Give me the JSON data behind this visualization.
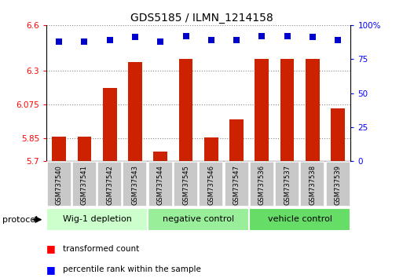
{
  "title": "GDS5185 / ILMN_1214158",
  "samples": [
    "GSM737540",
    "GSM737541",
    "GSM737542",
    "GSM737543",
    "GSM737544",
    "GSM737545",
    "GSM737546",
    "GSM737547",
    "GSM737536",
    "GSM737537",
    "GSM737538",
    "GSM737539"
  ],
  "transformed_count": [
    5.865,
    5.862,
    6.185,
    6.355,
    5.765,
    6.375,
    5.855,
    5.975,
    6.375,
    6.375,
    6.375,
    6.05
  ],
  "percentile_rank": [
    88,
    88,
    89,
    91,
    88,
    92,
    89,
    89,
    92,
    92,
    91,
    89
  ],
  "groups": [
    {
      "label": "Wig-1 depletion",
      "start": 0,
      "end": 4,
      "color": "#ccffcc"
    },
    {
      "label": "negative control",
      "start": 4,
      "end": 8,
      "color": "#99ee99"
    },
    {
      "label": "vehicle control",
      "start": 8,
      "end": 12,
      "color": "#66dd66"
    }
  ],
  "ylim_left": [
    5.7,
    6.6
  ],
  "ylim_right": [
    0,
    100
  ],
  "yticks_left": [
    5.7,
    5.85,
    6.075,
    6.3,
    6.6
  ],
  "yticks_right": [
    0,
    25,
    50,
    75,
    100
  ],
  "ytick_labels_left": [
    "5.7",
    "5.85",
    "6.075",
    "6.3",
    "6.6"
  ],
  "ytick_labels_right": [
    "0",
    "25",
    "50",
    "75",
    "100%"
  ],
  "bar_color": "#cc2200",
  "dot_color": "#0000cc",
  "grid_color": "#888888",
  "bar_bottom": 5.7,
  "bg_sample": "#c8c8c8",
  "protocol_label": "protocol"
}
